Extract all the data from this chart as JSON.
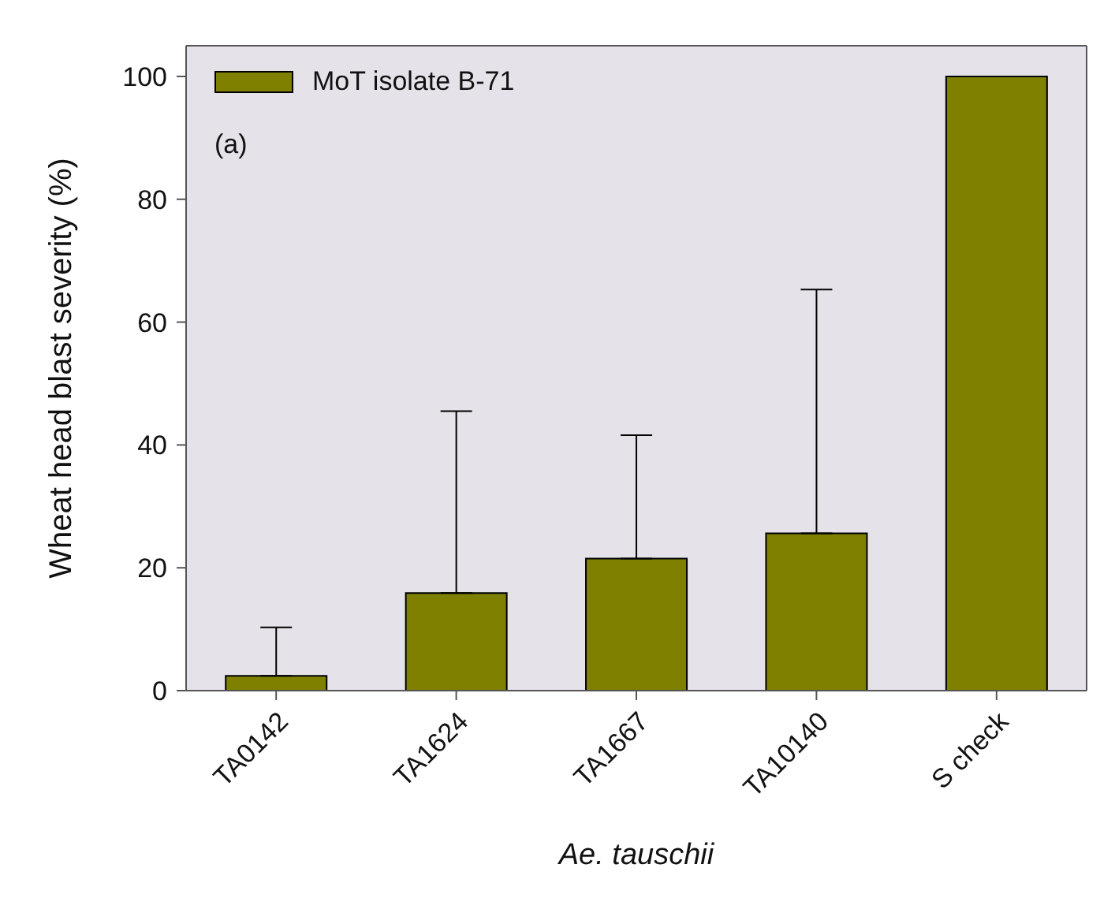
{
  "chart_data": {
    "type": "bar",
    "xlabel": "Ae. tauschii",
    "ylabel": "Wheat head blast severity (%)",
    "categories": [
      "TA0142",
      "TA1624",
      "TA1667",
      "TA10140",
      "S check"
    ],
    "series": [
      {
        "name": "MoT isolate B-71",
        "color": "#808000",
        "values": [
          2.4,
          15.9,
          21.5,
          25.6,
          100
        ],
        "errors": [
          [
            2.4,
            10.3
          ],
          [
            15.9,
            45.5
          ],
          [
            21.5,
            41.6
          ],
          [
            25.6,
            65.3
          ],
          null
        ]
      }
    ],
    "ylim": [
      0,
      105
    ],
    "yticks": [
      0,
      20,
      40,
      60,
      80,
      100
    ],
    "grid": false,
    "legend": "top left",
    "annotations": [
      "(a)"
    ]
  }
}
